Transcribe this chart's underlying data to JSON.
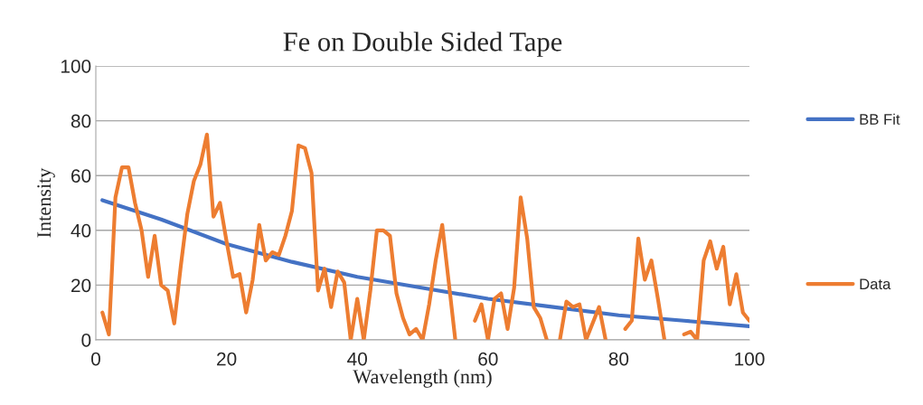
{
  "chart_data": {
    "type": "line",
    "title": "Fe on Double Sided Tape",
    "xlabel": "Wavelength (nm)",
    "ylabel": "Intensity",
    "x": [
      1,
      2,
      3,
      4,
      5,
      6,
      7,
      8,
      9,
      10,
      11,
      12,
      13,
      14,
      15,
      16,
      17,
      18,
      19,
      20,
      21,
      22,
      23,
      24,
      25,
      26,
      27,
      28,
      29,
      30,
      31,
      32,
      33,
      34,
      35,
      36,
      37,
      38,
      39,
      40,
      41,
      42,
      43,
      44,
      45,
      46,
      47,
      48,
      49,
      50,
      51,
      52,
      53,
      54,
      55,
      56,
      57,
      58,
      59,
      60,
      61,
      62,
      63,
      64,
      65,
      66,
      67,
      68,
      69,
      70,
      71,
      72,
      73,
      74,
      75,
      76,
      77,
      78,
      79,
      80,
      81,
      82,
      83,
      84,
      85,
      86,
      87,
      88,
      89,
      90,
      91,
      92,
      93,
      94,
      95,
      96,
      97,
      98,
      99,
      100
    ],
    "series": [
      {
        "name": "BB Fit",
        "color": "#4472c4",
        "x": [
          1,
          10,
          20,
          30,
          40,
          50,
          60,
          70,
          80,
          90,
          100
        ],
        "values": [
          51,
          44,
          35,
          28.5,
          23,
          19,
          15,
          12,
          9,
          7,
          5
        ]
      },
      {
        "name": "Data",
        "color": "#ed7d31",
        "values": [
          10,
          2,
          52,
          63,
          63,
          50,
          40,
          23,
          38,
          20,
          18,
          6,
          27,
          46,
          58,
          64,
          75,
          45,
          50,
          36,
          23,
          24,
          10,
          22,
          42,
          29,
          32,
          31,
          38,
          47,
          71,
          70,
          61,
          18,
          26,
          12,
          25,
          21,
          0,
          15,
          0,
          18,
          40,
          40,
          38,
          17,
          8,
          2,
          4,
          0,
          13,
          29,
          42,
          21,
          0,
          null,
          null,
          7,
          13,
          0,
          15,
          17,
          4,
          19,
          52,
          37,
          12,
          8,
          0,
          null,
          0,
          14,
          12,
          13,
          0,
          6,
          12,
          0,
          null,
          null,
          4,
          7,
          37,
          22,
          29,
          15,
          0,
          null,
          null,
          2,
          3,
          0,
          29,
          36,
          26,
          34,
          13,
          24,
          10,
          7
        ]
      }
    ],
    "xlim": [
      0,
      100
    ],
    "xticks": [
      0,
      20,
      40,
      60,
      80,
      100
    ],
    "ylim": [
      0,
      100
    ],
    "yticks": [
      0,
      20,
      40,
      60,
      80,
      100
    ],
    "grid": "y",
    "legend": "right",
    "marker": "none",
    "line_style": "solid"
  }
}
